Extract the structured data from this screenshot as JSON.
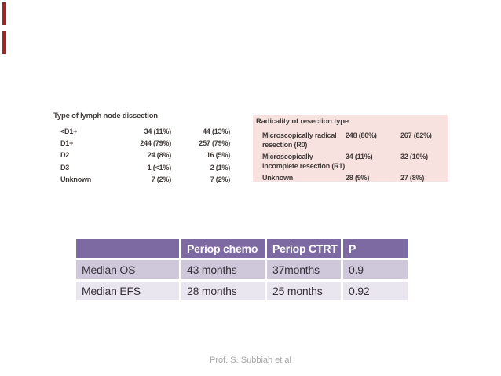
{
  "slide": {
    "footer": "Prof. S. Subbiah et al"
  },
  "accent_bars": {
    "color": "#a32422",
    "count": 2
  },
  "lymph_table": {
    "title": "Type of lymph node dissection",
    "rows": [
      {
        "label": "<D1+",
        "c1": "34 (11%)",
        "c2": "44 (13%)"
      },
      {
        "label": "D1+",
        "c1": "244 (79%)",
        "c2": "257 (79%)"
      },
      {
        "label": "D2",
        "c1": "24 (8%)",
        "c2": "16 (5%)"
      },
      {
        "label": "D3",
        "c1": "1 (<1%)",
        "c2": "2 (1%)"
      },
      {
        "label": "Unknown",
        "c1": "7 (2%)",
        "c2": "7 (2%)"
      }
    ]
  },
  "resection_table": {
    "title": "Radicality of resection type",
    "background": "#f8e2df",
    "rows": [
      {
        "label": "Microscopically radical resection (R0)",
        "c1": "248 (80%)",
        "c2": "267 (82%)"
      },
      {
        "label": "Microscopically incomplete resection (R1)",
        "c1": "34 (11%)",
        "c2": "32 (10%)"
      },
      {
        "label": "Unknown",
        "c1": "28 (9%)",
        "c2": "27 (8%)"
      }
    ]
  },
  "summary_table": {
    "header_bg": "#7e6aa2",
    "row_odd_bg": "#cfc8da",
    "row_even_bg": "#e9e6f0",
    "columns": [
      "",
      "Periop chemo",
      "Periop CTRT",
      "P"
    ],
    "rows": [
      {
        "label": "Median OS",
        "chemo": "43 months",
        "ctrt": "37months",
        "p": "0.9"
      },
      {
        "label": "Median EFS",
        "chemo": "28 months",
        "ctrt": "25 months",
        "p": "0.92"
      }
    ]
  }
}
